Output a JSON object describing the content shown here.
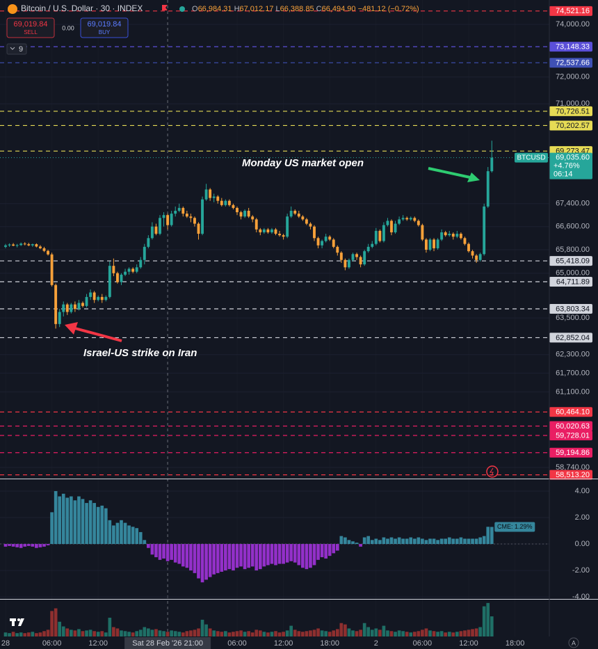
{
  "header": {
    "title": "Bitcoin / U.S. Dollar · 30 · INDEX",
    "quote": [
      {
        "key": "O",
        "val": "66,984.31"
      },
      {
        "key": "H",
        "val": "67,012.17"
      },
      {
        "key": "L",
        "val": "66,388.85"
      },
      {
        "key": "C",
        "val": "66,494.90"
      }
    ],
    "change": "−481.12 (−0.72%)",
    "sell": {
      "price": "69,019.84",
      "label": "SELL"
    },
    "spread": "0.00",
    "buy": {
      "price": "69,019.84",
      "label": "BUY"
    },
    "indicators": "9",
    "axis_mode": "A"
  },
  "annotations": {
    "market_open": "Monday US market open",
    "strike": "Israel-US strike on Iran"
  },
  "chart_data": [
    {
      "type": "candlestick",
      "log": true,
      "up_color": "#26a69a",
      "down_color": "#f7a13a",
      "xlim": [
        -1.44,
        140.9
      ],
      "ylim": [
        58400,
        74950
      ],
      "xticks": [
        {
          "value": 0,
          "label": "28"
        },
        {
          "value": 12,
          "label": "06:00"
        },
        {
          "value": 24,
          "label": "12:00"
        },
        {
          "value": 60,
          "label": "06:00"
        },
        {
          "value": 72,
          "label": "12:00"
        },
        {
          "value": 84,
          "label": "18:00"
        },
        {
          "value": 96,
          "label": "2"
        },
        {
          "value": 108,
          "label": "06:00"
        },
        {
          "value": 120,
          "label": "12:00"
        },
        {
          "value": 132,
          "label": "18:00"
        }
      ],
      "crosshair": {
        "value": 42,
        "label": "Sat 28 Feb '26   21:00"
      },
      "yticks": [
        {
          "value": 74000,
          "label": "74,000.00"
        },
        {
          "value": 72000,
          "label": "72,000.00"
        },
        {
          "value": 71000,
          "label": "71,000.00"
        },
        {
          "value": 67400,
          "label": "67,400.00"
        },
        {
          "value": 66600,
          "label": "66,600.00"
        },
        {
          "value": 65800,
          "label": "65,800.00"
        },
        {
          "value": 65000,
          "label": "65,000.00"
        },
        {
          "value": 63500,
          "label": "63,500.00"
        },
        {
          "value": 62300,
          "label": "62,300.00"
        },
        {
          "value": 61700,
          "label": "61,700.00"
        },
        {
          "value": 61100,
          "label": "61,100.00"
        },
        {
          "value": 58740,
          "label": "58,740.00"
        }
      ],
      "levels": [
        {
          "value": 74521.16,
          "label": "74,521.16",
          "color": "#f23645"
        },
        {
          "value": 73148.33,
          "label": "73,148.33",
          "color": "#5b4fd8"
        },
        {
          "value": 72537.66,
          "label": "72,537.66",
          "color": "#3f51b5"
        },
        {
          "value": 70726.51,
          "label": "70,726.51",
          "color": "#e6db55"
        },
        {
          "value": 70202.57,
          "label": "70,202.57",
          "color": "#e6db55"
        },
        {
          "value": 69273.47,
          "label": "69,273.47",
          "color": "#e6db55"
        },
        {
          "value": 65418.09,
          "label": "65,418.09",
          "color": "#d1d4dc"
        },
        {
          "value": 64711.89,
          "label": "64,711.89",
          "color": "#d1d4dc"
        },
        {
          "value": 63803.34,
          "label": "63,803.34",
          "color": "#d1d4dc"
        },
        {
          "value": 62852.04,
          "label": "62,852.04",
          "color": "#d1d4dc"
        },
        {
          "value": 60464.1,
          "label": "60,464.10",
          "color": "#f23645"
        },
        {
          "value": 60020.63,
          "label": "60,020.63",
          "color": "#e91e63"
        },
        {
          "value": 59728.01,
          "label": "59,728.01",
          "color": "#e91e63"
        },
        {
          "value": 59194.86,
          "label": "59,194.86",
          "color": "#e91e63"
        },
        {
          "value": 58513.2,
          "label": "58,513.20",
          "color": "#f23645"
        }
      ],
      "last": {
        "value": 69035.6,
        "label": "69,035.60",
        "symbol": "BTCUSD",
        "change": "+4.76%",
        "countdown": "06:14",
        "color": "#26a69a"
      },
      "open": [
        65900,
        65950,
        65980,
        65940,
        65960,
        66010,
        65990,
        65950,
        65990,
        65910,
        65850,
        65760,
        65640,
        64600,
        63300,
        63700,
        63950,
        63700,
        63950,
        63800,
        64000,
        63900,
        64200,
        64350,
        64100,
        64200,
        64100,
        64200,
        65250,
        65000,
        64700,
        64950,
        65050,
        65150,
        65050,
        65200,
        65450,
        65900,
        66200,
        66600,
        66350,
        66900,
        67000,
        66650,
        67050,
        67150,
        67250,
        67050,
        66950,
        66900,
        66700,
        66350,
        67550,
        67900,
        67600,
        67650,
        67500,
        67350,
        67500,
        67350,
        67250,
        67100,
        66950,
        67150,
        66950,
        66850,
        66500,
        66400,
        66500,
        66400,
        66500,
        66350,
        66300,
        66250,
        66950,
        67150,
        67050,
        66950,
        66850,
        66700,
        66600,
        66200,
        65950,
        66100,
        66250,
        66150,
        65900,
        65700,
        65450,
        65200,
        65450,
        65650,
        65550,
        65300,
        65750,
        65900,
        66000,
        66450,
        66100,
        66650,
        66800,
        66400,
        66700,
        66850,
        66900,
        66850,
        66900,
        66800,
        66650,
        66150,
        65800,
        66150,
        65850,
        66150,
        66400,
        66300,
        66350,
        66250,
        66350,
        66200,
        66000,
        65750,
        65600,
        65450,
        65650,
        67300,
        68550
      ],
      "high": [
        66000,
        66020,
        66030,
        66000,
        66050,
        66060,
        66040,
        66010,
        66020,
        65960,
        65900,
        65800,
        65700,
        64650,
        63800,
        64050,
        64000,
        64000,
        64050,
        64100,
        64050,
        64300,
        64450,
        64400,
        64250,
        64300,
        64250,
        65400,
        65500,
        65050,
        65000,
        65150,
        65200,
        65200,
        65300,
        65550,
        66000,
        66300,
        66750,
        66700,
        67000,
        67100,
        67050,
        67150,
        67300,
        67400,
        67300,
        67150,
        67050,
        66950,
        66750,
        67650,
        68100,
        67950,
        67750,
        67700,
        67600,
        67550,
        67550,
        67400,
        67300,
        67150,
        67200,
        67250,
        67000,
        66900,
        66550,
        66550,
        66550,
        66550,
        66550,
        66450,
        66350,
        67050,
        67300,
        67200,
        67150,
        67000,
        66900,
        66750,
        66650,
        66250,
        66150,
        66350,
        66300,
        66200,
        65950,
        65750,
        65500,
        65500,
        65700,
        65700,
        65600,
        65800,
        66000,
        66100,
        66550,
        66500,
        66750,
        66900,
        66850,
        66800,
        66950,
        67000,
        66950,
        66950,
        66950,
        66850,
        66700,
        66200,
        66200,
        66200,
        66200,
        66500,
        66450,
        66450,
        66400,
        66450,
        66400,
        66250,
        66050,
        65800,
        65650,
        65700,
        67400,
        68700,
        69650
      ],
      "low": [
        65850,
        65900,
        65920,
        65880,
        65930,
        65950,
        65920,
        65900,
        65880,
        65820,
        65720,
        65600,
        64550,
        63150,
        63200,
        63550,
        63600,
        63650,
        63700,
        63750,
        63850,
        63850,
        64100,
        64000,
        64050,
        64000,
        64050,
        64150,
        64900,
        64650,
        64600,
        64900,
        64950,
        65000,
        65000,
        65150,
        65300,
        65850,
        66150,
        66300,
        66300,
        66600,
        66500,
        66600,
        66950,
        67100,
        66950,
        66900,
        66750,
        66600,
        66150,
        66300,
        67500,
        67500,
        67450,
        67400,
        67300,
        67300,
        67300,
        67200,
        67000,
        66850,
        66900,
        66900,
        66750,
        66400,
        66300,
        66350,
        66350,
        66350,
        66300,
        66250,
        66150,
        66200,
        66900,
        67000,
        66900,
        66800,
        66650,
        66500,
        66100,
        65850,
        65850,
        66050,
        66100,
        65850,
        65600,
        65350,
        65100,
        65150,
        65400,
        65450,
        65200,
        65250,
        65700,
        65850,
        65950,
        66050,
        66050,
        66600,
        66300,
        66350,
        66650,
        66800,
        66800,
        66800,
        66750,
        66600,
        66100,
        65700,
        65750,
        65750,
        65800,
        66100,
        66250,
        66250,
        66150,
        66200,
        66150,
        65950,
        65700,
        65500,
        65350,
        65400,
        65600,
        67250,
        68500
      ],
      "close": [
        65950,
        65980,
        65940,
        65960,
        66010,
        65990,
        65950,
        65990,
        65910,
        65850,
        65760,
        65640,
        64600,
        63300,
        63700,
        63950,
        63700,
        63950,
        63800,
        64000,
        63900,
        64200,
        64350,
        64100,
        64200,
        64100,
        64200,
        65250,
        65000,
        64700,
        64950,
        65050,
        65150,
        65050,
        65200,
        65450,
        65900,
        66200,
        66600,
        66350,
        66900,
        67000,
        66650,
        67050,
        67150,
        67250,
        67050,
        66950,
        66900,
        66700,
        66350,
        67550,
        67900,
        67600,
        67650,
        67500,
        67350,
        67500,
        67350,
        67250,
        67100,
        66950,
        67150,
        66950,
        66850,
        66500,
        66400,
        66500,
        66400,
        66500,
        66350,
        66300,
        66250,
        66950,
        67150,
        67050,
        66950,
        66850,
        66700,
        66600,
        66200,
        65950,
        66100,
        66250,
        66150,
        65900,
        65700,
        65450,
        65200,
        65450,
        65650,
        65550,
        65300,
        65750,
        65900,
        66000,
        66450,
        66100,
        66650,
        66800,
        66400,
        66700,
        66850,
        66900,
        66850,
        66900,
        66800,
        66650,
        66150,
        65800,
        66150,
        65850,
        66150,
        66400,
        66300,
        66350,
        66250,
        66350,
        66200,
        66000,
        65750,
        65600,
        65450,
        65650,
        67300,
        68550,
        69035.6
      ]
    },
    {
      "type": "bar",
      "up_color": "#35869c",
      "down_color": "#9330c9",
      "grid": true,
      "ylim": [
        -4.1,
        4.84
      ],
      "yticks": [
        {
          "value": 4,
          "label": "4.00"
        },
        {
          "value": 2,
          "label": "2.00"
        },
        {
          "value": 0,
          "label": "0.00"
        },
        {
          "value": -2,
          "label": "-2.00"
        },
        {
          "value": -4,
          "label": "-4.00"
        }
      ],
      "last_label": "CME: 1.29%",
      "values": [
        -0.2,
        -0.15,
        -0.2,
        -0.25,
        -0.3,
        -0.2,
        -0.15,
        -0.2,
        -0.3,
        -0.25,
        -0.2,
        -0.1,
        2.4,
        4.0,
        3.6,
        3.8,
        3.5,
        3.6,
        3.3,
        3.6,
        3.4,
        3.1,
        3.3,
        3.1,
        2.8,
        2.9,
        2.7,
        1.8,
        1.4,
        1.6,
        1.8,
        1.6,
        1.4,
        1.3,
        1.2,
        0.9,
        0.3,
        -0.3,
        -0.8,
        -1.0,
        -1.2,
        -1.1,
        -1.3,
        -1.2,
        -1.4,
        -1.5,
        -1.7,
        -1.8,
        -2.0,
        -2.2,
        -2.6,
        -2.9,
        -2.7,
        -2.5,
        -2.3,
        -2.2,
        -2.1,
        -2.0,
        -1.9,
        -2.0,
        -1.8,
        -1.7,
        -1.9,
        -1.8,
        -1.7,
        -2.0,
        -1.9,
        -1.7,
        -1.6,
        -1.5,
        -1.6,
        -1.5,
        -1.5,
        -1.4,
        -1.3,
        -1.4,
        -1.6,
        -1.8,
        -1.9,
        -1.8,
        -1.6,
        -1.2,
        -1.0,
        -1.1,
        -0.9,
        -0.7,
        -0.5,
        0.6,
        0.5,
        0.3,
        0.2,
        0.1,
        -0.2,
        0.5,
        0.6,
        0.3,
        0.4,
        0.3,
        0.5,
        0.4,
        0.5,
        0.4,
        0.5,
        0.4,
        0.4,
        0.5,
        0.4,
        0.5,
        0.4,
        0.3,
        0.4,
        0.4,
        0.3,
        0.4,
        0.4,
        0.5,
        0.4,
        0.4,
        0.5,
        0.4,
        0.4,
        0.4,
        0.4,
        0.5,
        0.6,
        1.3,
        1.29
      ]
    },
    {
      "type": "volume",
      "up_color": "#1f6f66",
      "down_color": "#8e2f2f",
      "ylim": [
        0,
        55
      ],
      "values": [
        6,
        5,
        7,
        5,
        6,
        5,
        6,
        7,
        5,
        6,
        8,
        10,
        38,
        42,
        22,
        15,
        12,
        10,
        9,
        11,
        8,
        9,
        10,
        8,
        7,
        8,
        6,
        28,
        14,
        12,
        9,
        8,
        7,
        6,
        8,
        10,
        14,
        12,
        10,
        11,
        9,
        8,
        7,
        9,
        8,
        7,
        6,
        8,
        9,
        10,
        12,
        25,
        18,
        12,
        9,
        8,
        7,
        8,
        6,
        7,
        8,
        9,
        7,
        8,
        6,
        10,
        9,
        7,
        6,
        7,
        8,
        6,
        7,
        9,
        16,
        10,
        8,
        7,
        8,
        9,
        10,
        12,
        9,
        8,
        7,
        9,
        11,
        20,
        18,
        12,
        9,
        8,
        10,
        20,
        14,
        10,
        12,
        10,
        16,
        9,
        8,
        7,
        9,
        8,
        7,
        6,
        7,
        8,
        10,
        12,
        9,
        8,
        7,
        8,
        6,
        7,
        6,
        7,
        8,
        9,
        10,
        11,
        12,
        14,
        45,
        50,
        30
      ]
    }
  ]
}
